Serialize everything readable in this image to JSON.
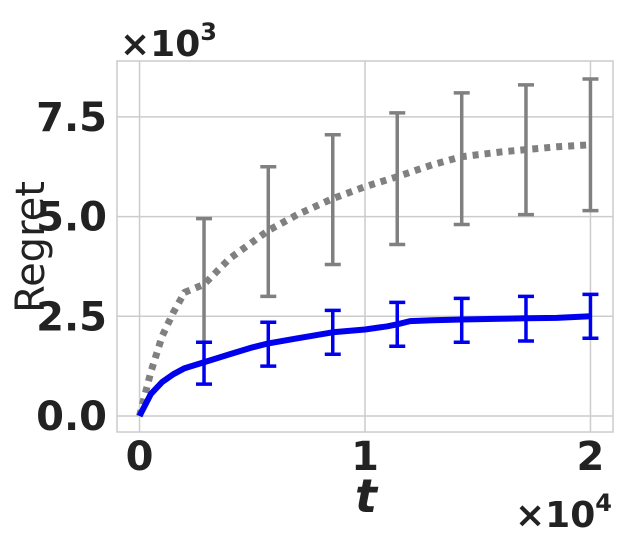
{
  "chart_data": {
    "type": "line",
    "xlabel": "t",
    "ylabel": "Regret",
    "x_multiplier": "×10",
    "x_multiplier_exp": "4",
    "y_multiplier": "×10",
    "y_multiplier_exp": "3",
    "xlim": [
      -0.1,
      2.1
    ],
    "ylim": [
      -0.4,
      8.9
    ],
    "x_ticks": [
      0,
      1,
      2
    ],
    "x_tick_labels": [
      "0",
      "1",
      "2"
    ],
    "y_ticks": [
      0,
      2.5,
      5,
      7.5
    ],
    "y_tick_labels": [
      "0.0",
      "2.5",
      "5.0",
      "7.5"
    ],
    "grid": true,
    "series": [
      {
        "color": "#808080",
        "style": "dotted",
        "x": [
          0,
          0.05,
          0.1,
          0.15,
          0.2,
          0.286,
          0.4,
          0.571,
          0.7,
          0.857,
          1.0,
          1.143,
          1.3,
          1.429,
          1.6,
          1.714,
          1.85,
          2.0
        ],
        "y": [
          0,
          1.1,
          2.0,
          2.6,
          3.1,
          3.3,
          3.95,
          4.65,
          5.05,
          5.45,
          5.75,
          6.0,
          6.3,
          6.5,
          6.62,
          6.68,
          6.75,
          6.8
        ],
        "errorbars": {
          "x": [
            0.286,
            0.571,
            0.857,
            1.143,
            1.429,
            1.714,
            2.0
          ],
          "low": [
            1.85,
            3.0,
            3.8,
            4.3,
            4.8,
            5.05,
            5.15
          ],
          "high": [
            4.95,
            6.25,
            7.05,
            7.6,
            8.1,
            8.3,
            8.45
          ]
        }
      },
      {
        "color": "#0000ee",
        "style": "solid",
        "x": [
          0,
          0.05,
          0.1,
          0.15,
          0.2,
          0.286,
          0.4,
          0.5,
          0.571,
          0.7,
          0.857,
          1.0,
          1.1,
          1.143,
          1.2,
          1.3,
          1.429,
          1.6,
          1.714,
          1.85,
          2.0
        ],
        "y": [
          0,
          0.55,
          0.85,
          1.05,
          1.2,
          1.35,
          1.55,
          1.72,
          1.82,
          1.95,
          2.1,
          2.17,
          2.25,
          2.3,
          2.38,
          2.4,
          2.42,
          2.44,
          2.45,
          2.46,
          2.5
        ],
        "errorbars": {
          "x": [
            0.286,
            0.571,
            0.857,
            1.143,
            1.429,
            1.714,
            2.0
          ],
          "low": [
            0.8,
            1.25,
            1.55,
            1.75,
            1.85,
            1.88,
            1.95
          ],
          "high": [
            1.85,
            2.35,
            2.65,
            2.85,
            2.95,
            3.0,
            3.05
          ]
        }
      }
    ]
  }
}
